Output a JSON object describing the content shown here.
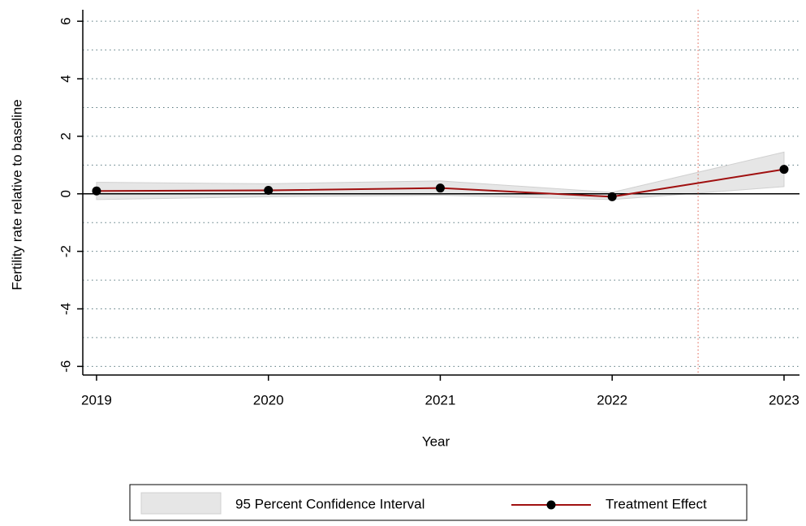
{
  "chart_data": {
    "type": "line",
    "x_label": "Year",
    "y_label": "Fertility rate relative to baseline",
    "x": [
      2019,
      2020,
      2021,
      2022,
      2023
    ],
    "xlim": [
      2018.92,
      2023.09
    ],
    "xticks": [
      2019,
      2020,
      2021,
      2022,
      2023
    ],
    "ylim": [
      -6.3,
      6.4
    ],
    "yticks": [
      -6,
      -4,
      -2,
      0,
      2,
      4,
      6
    ],
    "minor_yticks": [
      -5,
      -3,
      -1,
      1,
      3,
      5
    ],
    "grid": true,
    "hline": 0,
    "vline": 2022.5,
    "vline_color": "#e06050",
    "band": {
      "name": "95 Percent Confidence Interval",
      "color": "#e6e6e6",
      "lower": [
        -0.2,
        -0.1,
        -0.05,
        -0.2,
        0.25
      ],
      "upper": [
        0.4,
        0.35,
        0.45,
        0.05,
        1.45
      ]
    },
    "series": [
      {
        "name": "Treatment Effect",
        "color": "#a01010",
        "marker_color": "#000000",
        "values": [
          0.1,
          0.12,
          0.2,
          -0.1,
          0.85
        ]
      }
    ],
    "legend": "bottom"
  }
}
